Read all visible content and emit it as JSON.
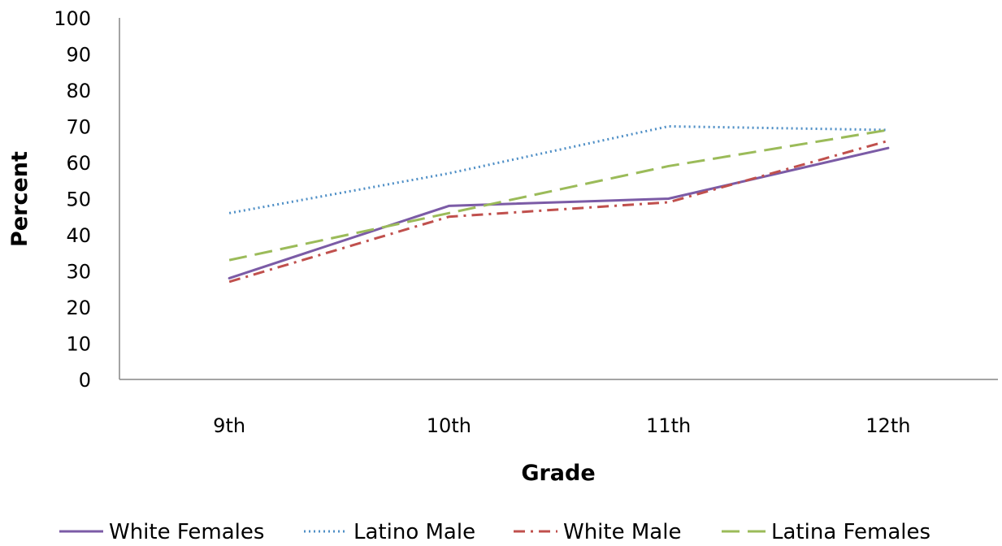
{
  "chart_data": {
    "type": "line",
    "title": "",
    "xlabel": "Grade",
    "ylabel": "Percent",
    "ylim": [
      0,
      100
    ],
    "yticks": [
      0,
      10,
      20,
      30,
      40,
      50,
      60,
      70,
      80,
      90,
      100
    ],
    "grid": false,
    "legend_position": "bottom",
    "categories": [
      "9th",
      "10th",
      "11th",
      "12th"
    ],
    "series": [
      {
        "name": "White Females",
        "values": [
          28,
          48,
          50,
          64
        ],
        "color": "#7B5BA6",
        "style": "solid"
      },
      {
        "name": "Latino Male",
        "values": [
          46,
          57,
          70,
          69
        ],
        "color": "#4F8FC6",
        "style": "dotted"
      },
      {
        "name": "White Male",
        "values": [
          27,
          45,
          49,
          66
        ],
        "color": "#C0504D",
        "style": "dash-dot"
      },
      {
        "name": "Latina Females",
        "values": [
          33,
          46,
          59,
          69
        ],
        "color": "#9BBB59",
        "style": "dashed"
      }
    ]
  }
}
